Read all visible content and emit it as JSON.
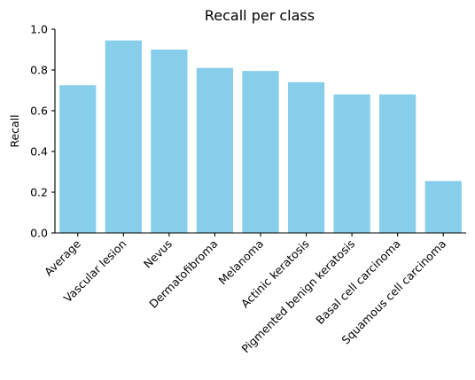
{
  "chart_data": {
    "type": "bar",
    "title": "Recall per class",
    "xlabel": "",
    "ylabel": "Recall",
    "categories": [
      "Average",
      "Vascular lesion",
      "Nevus",
      "Dermatofibroma",
      "Melanoma",
      "Actinic keratosis",
      "Pigmented benign keratosis",
      "Basal cell carcinoma",
      "Squamous cell carcinoma"
    ],
    "values": [
      0.725,
      0.945,
      0.9,
      0.81,
      0.795,
      0.74,
      0.68,
      0.68,
      0.255
    ],
    "ylim": [
      0,
      1.0
    ],
    "yticks": [
      "0.0",
      "0.2",
      "0.4",
      "0.6",
      "0.8",
      "1.0"
    ],
    "grid": false,
    "bar_color": "#87CEEB"
  }
}
